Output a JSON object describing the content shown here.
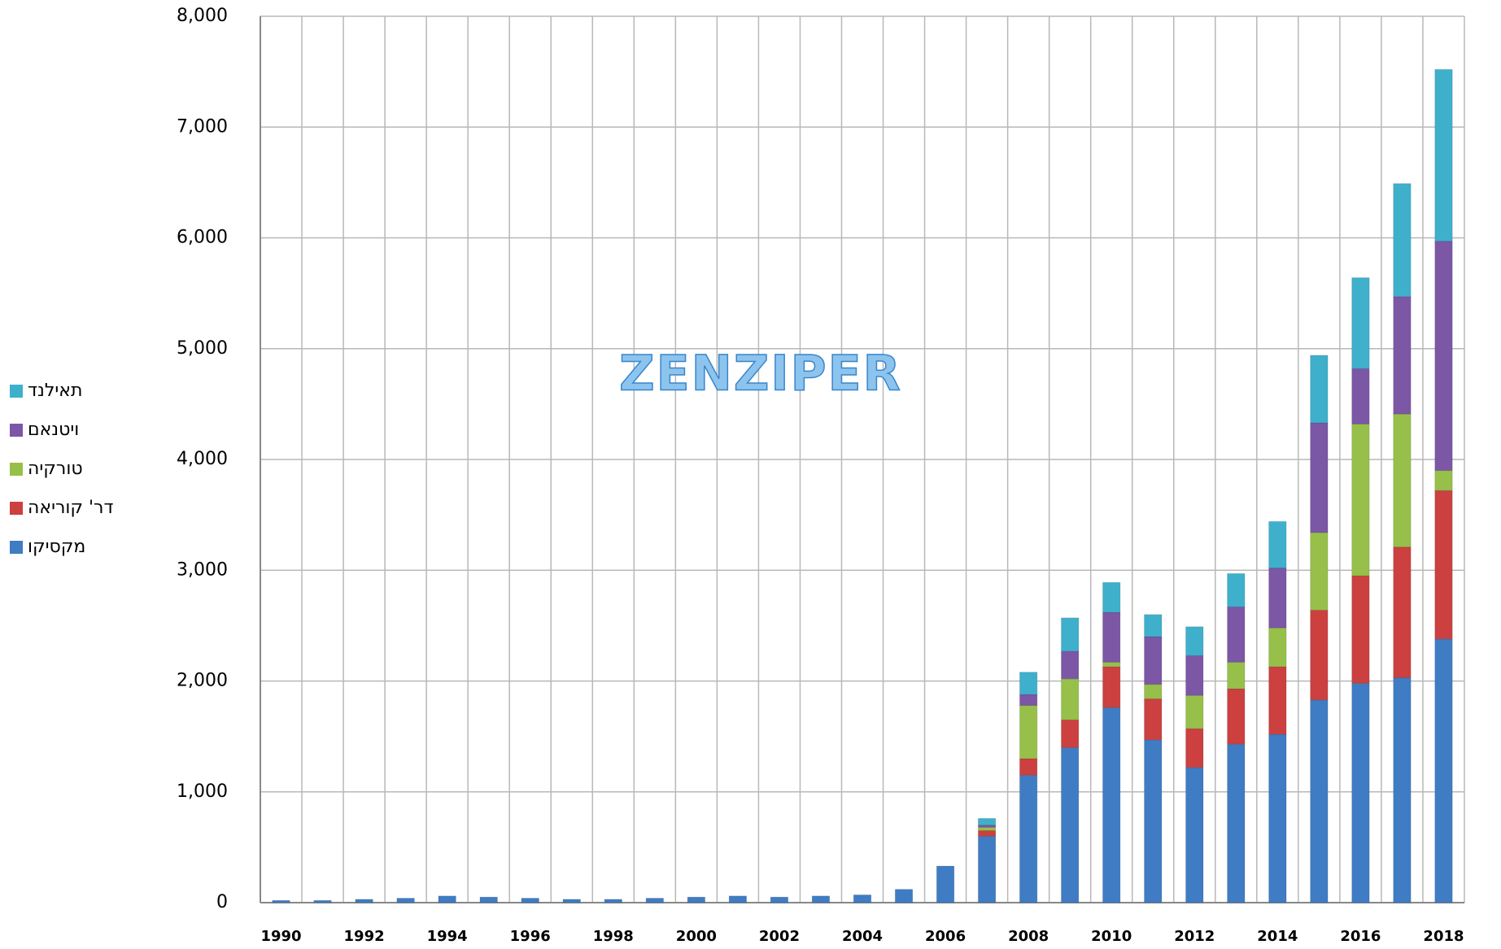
{
  "chart_data": {
    "type": "stacked_bar",
    "annotations": [
      "ZENZIPER"
    ],
    "categories": [
      "1990",
      null,
      "1992",
      null,
      "1994",
      null,
      "1996",
      null,
      "1998",
      null,
      "2000",
      null,
      "2002",
      null,
      "2004",
      null,
      "2006",
      null,
      "2008",
      null,
      "2010",
      null,
      "2012",
      null,
      "2014",
      null,
      "2016",
      null,
      "2018"
    ],
    "series": [
      {
        "name": "מקסיקו",
        "color": "#3f7cc4",
        "values": [
          20,
          20,
          30,
          40,
          60,
          50,
          40,
          30,
          30,
          40,
          50,
          60,
          50,
          60,
          70,
          120,
          330,
          600,
          1150,
          1400,
          1760,
          1470,
          1220,
          1430,
          1520,
          1830,
          1980,
          2030,
          2380
        ]
      },
      {
        "name": "דר' קוריאה",
        "color": "#cc4040",
        "values": [
          0,
          0,
          0,
          0,
          0,
          0,
          0,
          0,
          0,
          0,
          0,
          0,
          0,
          0,
          0,
          0,
          0,
          50,
          150,
          250,
          370,
          370,
          350,
          500,
          610,
          810,
          970,
          1180,
          1340
        ]
      },
      {
        "name": "טורקיה",
        "color": "#97c04a",
        "values": [
          0,
          0,
          0,
          0,
          0,
          0,
          0,
          0,
          0,
          0,
          0,
          0,
          0,
          0,
          0,
          0,
          0,
          30,
          480,
          370,
          40,
          130,
          300,
          240,
          350,
          700,
          1370,
          1200,
          180
        ]
      },
      {
        "name": "ויטנאם",
        "color": "#7b57a6",
        "values": [
          0,
          0,
          0,
          0,
          0,
          0,
          0,
          0,
          0,
          0,
          0,
          0,
          0,
          0,
          0,
          0,
          0,
          20,
          100,
          250,
          450,
          430,
          360,
          500,
          540,
          990,
          500,
          1060,
          2070
        ]
      },
      {
        "name": "תאילנד",
        "color": "#3fb0cc",
        "values": [
          0,
          0,
          0,
          0,
          0,
          0,
          0,
          0,
          0,
          0,
          0,
          0,
          0,
          0,
          0,
          0,
          0,
          60,
          200,
          300,
          270,
          200,
          260,
          300,
          420,
          610,
          820,
          1020,
          1550
        ]
      }
    ],
    "ylim": [
      0,
      8000
    ],
    "yticks": [
      0,
      {
        "value": 1000,
        "label": "1,000"
      },
      {
        "value": 2000,
        "label": "2,000"
      },
      {
        "value": 3000,
        "label": "3,000"
      },
      {
        "value": 4000,
        "label": "4,000"
      },
      {
        "value": 5000,
        "label": "5,000"
      },
      {
        "value": 6000,
        "label": "6,000"
      },
      {
        "value": 7000,
        "label": "7,000"
      },
      {
        "value": 8000,
        "label": "8,000"
      }
    ],
    "grid": true,
    "legend": "left"
  }
}
